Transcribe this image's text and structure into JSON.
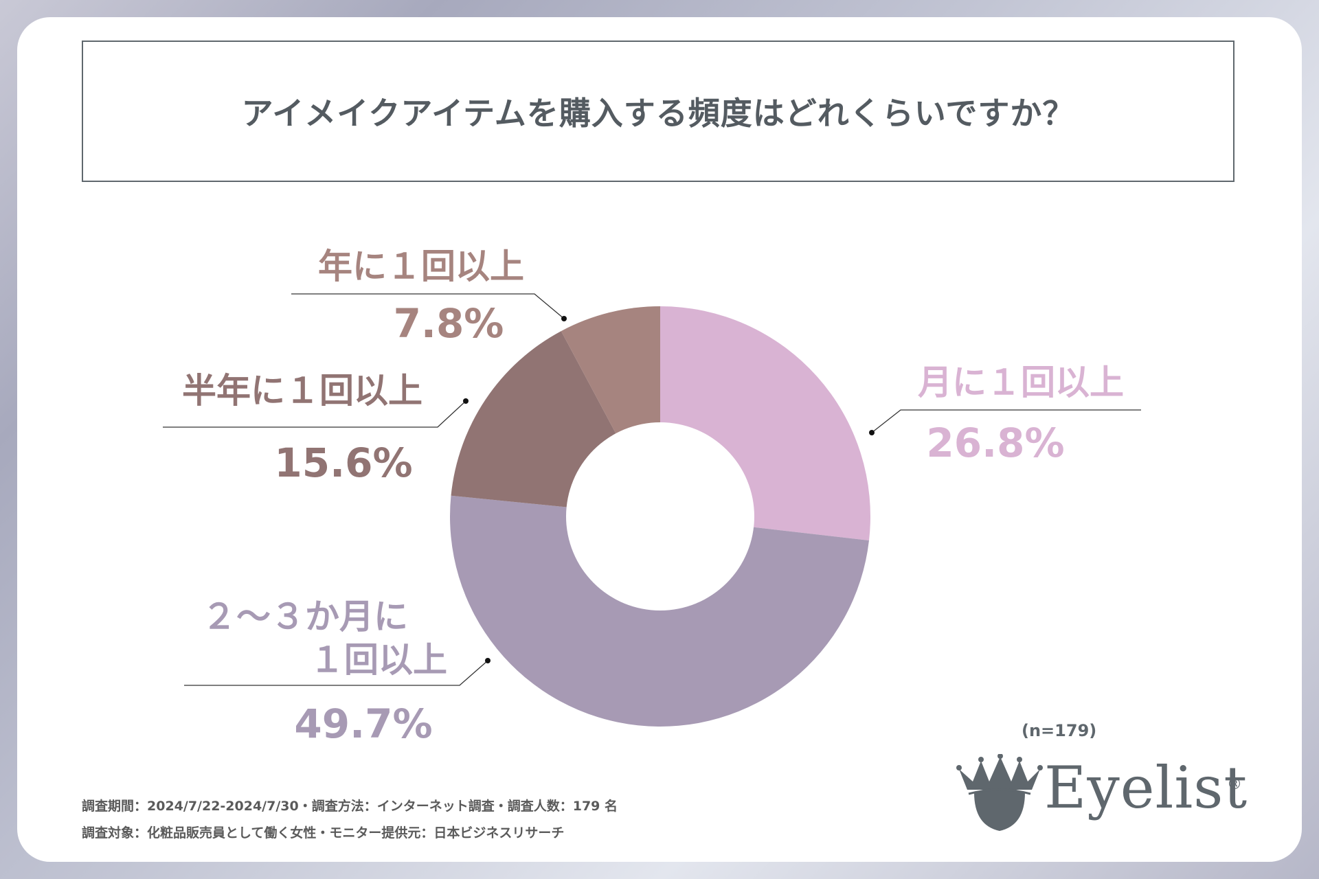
{
  "title": "アイメイクアイテムを購入する頻度はどれくらいですか？",
  "chart_data": {
    "type": "pie",
    "donut": true,
    "title": "アイメイクアイテムを購入する頻度はどれくらいですか？",
    "slices": [
      {
        "label": "月に１回以上",
        "value": 26.8,
        "value_label": "26.8%",
        "color": "#d9b3d3"
      },
      {
        "label": "２～３か月に１回以上",
        "label_lines": [
          "２～３か月に",
          "１回以上"
        ],
        "value": 49.7,
        "value_label": "49.7%",
        "color": "#a79ab4"
      },
      {
        "label": "半年に１回以上",
        "value": 15.6,
        "value_label": "15.6%",
        "color": "#917473"
      },
      {
        "label": "年に１回以上",
        "value": 7.8,
        "value_label": "7.8%",
        "color": "#a6847f"
      }
    ],
    "label_colors": [
      "#d9b3d3",
      "#a79ab4",
      "#917473",
      "#a6847f"
    ],
    "sample_note": "(n=179)"
  },
  "footer": {
    "line1": "調査期間：2024/7/22-2024/7/30・調査方法：インターネット調査・調査人数：179 名",
    "line2": "調査対象：化粧品販売員として働く女性・モニター提供元：日本ビジネスリサーチ"
  },
  "brand": {
    "name": "Eyelist",
    "registered": "®",
    "icon": "crown-eye-icon"
  },
  "colors": {
    "title_text": "#545b61",
    "accent_gray": "#5f676d"
  }
}
